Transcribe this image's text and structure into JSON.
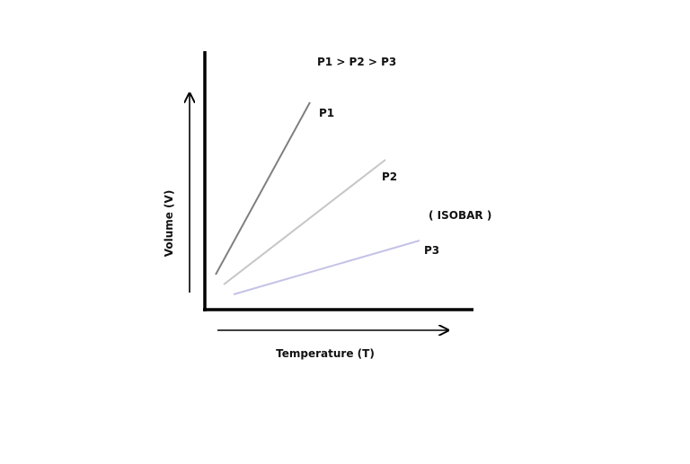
{
  "diagram": {
    "condition": "P1 > P2 > P3",
    "note": "( ISOBAR )",
    "xlabel": "Temperature (T)",
    "ylabel": "Volume (V)",
    "lines": [
      {
        "label": "P1",
        "color": "#7f7f7f"
      },
      {
        "label": "P2",
        "color": "#c6c6c6"
      },
      {
        "label": "P3",
        "color": "#c4c2e6"
      }
    ]
  }
}
